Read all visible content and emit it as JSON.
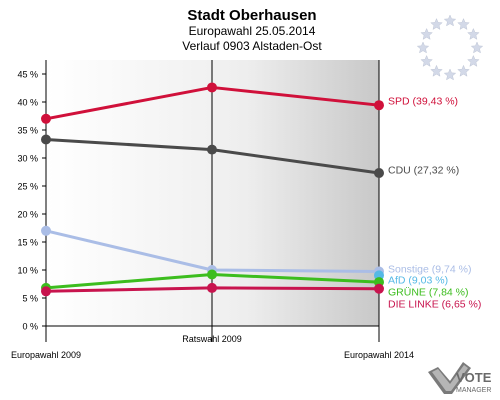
{
  "header": {
    "title": "Stadt Oberhausen",
    "subtitle": "Europawahl 25.05.2014",
    "subtitle2": "Verlauf 0903 Alstaden-Ost"
  },
  "chart_data": {
    "type": "line",
    "x": [
      "Europawahl 2009",
      "Ratswahl 2009",
      "Europawahl 2014"
    ],
    "ylim": [
      0,
      47.5
    ],
    "ytick_labels": [
      "0 %",
      "5 %",
      "10 %",
      "15 %",
      "20 %",
      "25 %",
      "30 %",
      "35 %",
      "40 %",
      "45 %"
    ],
    "grid": false,
    "legend": "right-end labels",
    "series": [
      {
        "name": "SPD",
        "label": "SPD (39,43 %)",
        "color": "#d0103a",
        "values": [
          37.0,
          42.6,
          39.43
        ]
      },
      {
        "name": "CDU",
        "label": "CDU (27,32 %)",
        "color": "#4a4a4a",
        "values": [
          33.3,
          31.5,
          27.32
        ]
      },
      {
        "name": "Sonstige",
        "label": "Sonstige (9,74 %)",
        "color": "#aabde6",
        "values": [
          17.0,
          10.0,
          9.74
        ]
      },
      {
        "name": "AfD",
        "label": "AfD (9,03 %)",
        "color": "#55b9e6",
        "values": [
          null,
          null,
          9.03
        ]
      },
      {
        "name": "GRÜNE",
        "label": "GRÜNE (7,84 %)",
        "color": "#3cbd1e",
        "values": [
          6.8,
          9.2,
          7.84
        ]
      },
      {
        "name": "DIE LINKE",
        "label": "DIE LINKE (6,65 %)",
        "color": "#c8144e",
        "values": [
          6.2,
          6.8,
          6.65
        ]
      }
    ]
  },
  "logo": {
    "text": "VOTE",
    "subtext": "MANAGER"
  }
}
